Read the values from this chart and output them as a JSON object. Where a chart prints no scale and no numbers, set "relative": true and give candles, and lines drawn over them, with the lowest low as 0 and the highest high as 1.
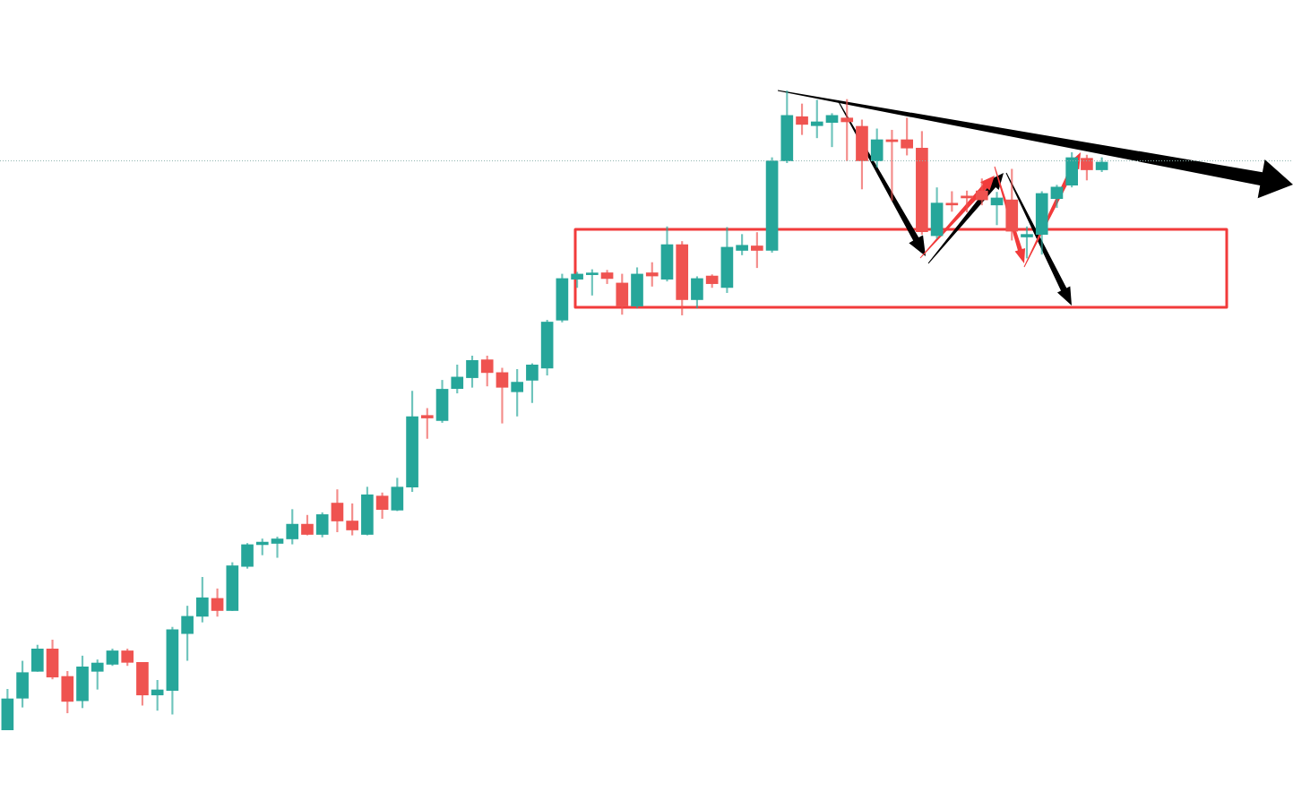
{
  "chart_data": {
    "type": "candlestick",
    "relative": true,
    "categories": [
      null,
      null,
      null,
      null,
      null,
      null,
      null,
      null,
      null,
      null,
      null,
      null,
      null,
      null,
      null,
      null,
      null,
      null,
      null,
      null,
      null,
      null,
      null,
      null,
      null,
      null,
      null,
      null,
      null,
      null,
      null,
      null,
      null,
      null,
      null,
      null,
      null,
      null,
      null,
      null,
      null,
      null,
      null,
      null,
      null,
      null,
      null,
      null,
      null,
      null,
      null,
      null,
      null,
      null,
      null,
      null,
      null,
      null,
      null,
      null,
      null,
      null,
      null,
      null,
      null,
      null,
      null,
      null,
      null,
      null,
      null,
      null,
      null,
      null
    ],
    "ohlc": [
      [
        0,
        0.064,
        0,
        0.049
      ],
      [
        0.05,
        0.108,
        0.036,
        0.09
      ],
      [
        0.092,
        0.133,
        0.092,
        0.127
      ],
      [
        0.127,
        0.141,
        0.08,
        0.083
      ],
      [
        0.084,
        0.092,
        0.027,
        0.045
      ],
      [
        0.046,
        0.116,
        0.035,
        0.099
      ],
      [
        0.092,
        0.11,
        0.064,
        0.105
      ],
      [
        0.103,
        0.127,
        0.101,
        0.124
      ],
      [
        0.124,
        0.127,
        0.101,
        0.106
      ],
      [
        0.106,
        0.106,
        0.039,
        0.055
      ],
      [
        0.055,
        0.078,
        0.031,
        0.063
      ],
      [
        0.062,
        0.161,
        0.025,
        0.157
      ],
      [
        0.151,
        0.194,
        0.109,
        0.178
      ],
      [
        0.178,
        0.239,
        0.169,
        0.207
      ],
      [
        0.206,
        0.221,
        0.178,
        0.187
      ],
      [
        0.187,
        0.262,
        0.187,
        0.257
      ],
      [
        0.256,
        0.292,
        0.253,
        0.29
      ],
      [
        0.29,
        0.299,
        0.274,
        0.294
      ],
      [
        0.292,
        0.302,
        0.27,
        0.299
      ],
      [
        0.299,
        0.345,
        0.291,
        0.322
      ],
      [
        0.322,
        0.336,
        0.305,
        0.306
      ],
      [
        0.306,
        0.34,
        0.302,
        0.337
      ],
      [
        0.355,
        0.376,
        0.31,
        0.327
      ],
      [
        0.327,
        0.354,
        0.305,
        0.313
      ],
      [
        0.306,
        0.38,
        0.305,
        0.368
      ],
      [
        0.366,
        0.371,
        0.331,
        0.345
      ],
      [
        0.344,
        0.394,
        0.343,
        0.38
      ],
      [
        0.38,
        0.53,
        0.373,
        0.49
      ],
      [
        0.492,
        0.503,
        0.456,
        0.488
      ],
      [
        0.484,
        0.547,
        0.481,
        0.533
      ],
      [
        0.534,
        0.571,
        0.527,
        0.552
      ],
      [
        0.551,
        0.585,
        0.536,
        0.578
      ],
      [
        0.579,
        0.585,
        0.538,
        0.559
      ],
      [
        0.559,
        0.566,
        0.48,
        0.536
      ],
      [
        0.529,
        0.564,
        0.491,
        0.544
      ],
      [
        0.547,
        0.573,
        0.512,
        0.571
      ],
      [
        0.566,
        0.641,
        0.555,
        0.638
      ],
      [
        0.641,
        0.713,
        0.638,
        0.706
      ],
      [
        0.705,
        0.716,
        0.692,
        0.713
      ],
      [
        0.712,
        0.72,
        0.68,
        0.713
      ],
      [
        0.715,
        0.719,
        0.698,
        0.706
      ],
      [
        0.699,
        0.713,
        0.65,
        0.663
      ],
      [
        0.663,
        0.723,
        0.66,
        0.713
      ],
      [
        0.715,
        0.731,
        0.694,
        0.71
      ],
      [
        0.705,
        0.787,
        0.702,
        0.759
      ],
      [
        0.759,
        0.764,
        0.649,
        0.673
      ],
      [
        0.673,
        0.709,
        0.66,
        0.706
      ],
      [
        0.71,
        0.712,
        0.692,
        0.698
      ],
      [
        0.692,
        0.786,
        0.684,
        0.755
      ],
      [
        0.75,
        0.775,
        0.743,
        0.758
      ],
      [
        0.757,
        0.778,
        0.723,
        0.75
      ],
      [
        0.75,
        0.895,
        0.747,
        0.89
      ],
      [
        0.89,
        1,
        0.887,
        0.961
      ],
      [
        0.959,
        0.979,
        0.931,
        0.947
      ],
      [
        0.945,
        0.985,
        0.926,
        0.951
      ],
      [
        0.95,
        0.964,
        0.912,
        0.961
      ],
      [
        0.957,
        0.986,
        0.89,
        0.951
      ],
      [
        0.944,
        0.954,
        0.846,
        0.89
      ],
      [
        0.89,
        0.94,
        0.88,
        0.923
      ],
      [
        0.923,
        0.938,
        0.828,
        0.92
      ],
      [
        0.923,
        0.957,
        0.899,
        0.91
      ],
      [
        0.91,
        0.936,
        0.775,
        0.779
      ],
      [
        0.773,
        0.848,
        0.769,
        0.824
      ],
      [
        0.822,
        0.842,
        0.811,
        0.821
      ],
      [
        0.835,
        0.843,
        0.81,
        0.832
      ],
      [
        0.843,
        0.862,
        0.821,
        0.829
      ],
      [
        0.821,
        0.841,
        0.79,
        0.832
      ],
      [
        0.829,
        0.877,
        0.766,
        0.78
      ],
      [
        0.771,
        0.787,
        0.738,
        0.775
      ],
      [
        0.775,
        0.842,
        0.744,
        0.839
      ],
      [
        0.831,
        0.852,
        0.817,
        0.849
      ],
      [
        0.852,
        0.903,
        0.849,
        0.895
      ],
      [
        0.894,
        0.899,
        0.86,
        0.876
      ],
      [
        0.876,
        0.895,
        0.873,
        0.888
      ]
    ],
    "colors": [
      "#26a69a",
      "#26a69a",
      "#26a69a",
      "#ef5350",
      "#ef5350",
      "#26a69a",
      "#26a69a",
      "#26a69a",
      "#ef5350",
      "#ef5350",
      "#26a69a",
      "#26a69a",
      "#26a69a",
      "#26a69a",
      "#ef5350",
      "#26a69a",
      "#26a69a",
      "#26a69a",
      "#26a69a",
      "#26a69a",
      "#ef5350",
      "#26a69a",
      "#ef5350",
      "#ef5350",
      "#26a69a",
      "#ef5350",
      "#26a69a",
      "#26a69a",
      "#ef5350",
      "#26a69a",
      "#26a69a",
      "#26a69a",
      "#ef5350",
      "#ef5350",
      "#26a69a",
      "#26a69a",
      "#26a69a",
      "#26a69a",
      "#26a69a",
      "#26a69a",
      "#ef5350",
      "#ef5350",
      "#26a69a",
      "#ef5350",
      "#26a69a",
      "#ef5350",
      "#26a69a",
      "#ef5350",
      "#26a69a",
      "#26a69a",
      "#ef5350",
      "#26a69a",
      "#26a69a",
      "#ef5350",
      "#26a69a",
      "#26a69a",
      "#ef5350",
      "#ef5350",
      "#26a69a",
      "#ef5350",
      "#ef5350",
      "#ef5350",
      "#26a69a",
      "#ef5350",
      "#ef5350",
      "#ef5350",
      "#26a69a",
      "#ef5350",
      "#26a69a",
      "#26a69a",
      "#26a69a",
      "#26a69a",
      "#ef5350",
      "#26a69a"
    ],
    "ref_lines": [
      {
        "axis": "y",
        "value": 0.89,
        "color": "#8fb5b0",
        "line_style": "dotted"
      }
    ]
  }
}
